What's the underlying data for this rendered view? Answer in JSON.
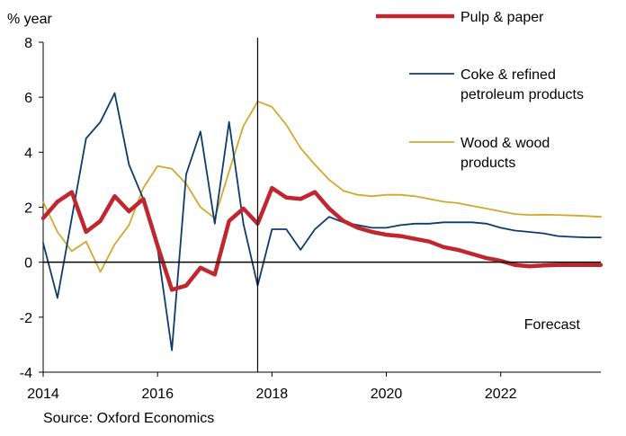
{
  "chart_data": {
    "type": "line",
    "title": "",
    "ylabel": "% year",
    "xlabel": "",
    "ylim": [
      -4,
      8
    ],
    "yticks": [
      -4,
      -2,
      0,
      2,
      4,
      6,
      8
    ],
    "xlim": [
      2014,
      2023.75
    ],
    "xticks": [
      2014,
      2016,
      2018,
      2020,
      2022
    ],
    "x": [
      2014,
      2014.25,
      2014.5,
      2014.75,
      2015,
      2015.25,
      2015.5,
      2015.75,
      2016,
      2016.25,
      2016.5,
      2016.75,
      2017,
      2017.25,
      2017.5,
      2017.75,
      2018,
      2018.25,
      2018.5,
      2018.75,
      2019,
      2019.25,
      2019.5,
      2019.75,
      2020,
      2020.25,
      2020.5,
      2020.75,
      2021,
      2021.25,
      2021.5,
      2021.75,
      2022,
      2022.25,
      2022.5,
      2022.75,
      2023,
      2023.25,
      2023.5,
      2023.75
    ],
    "series": [
      {
        "name": "Pulp & paper",
        "color": "#c0262d",
        "width": 4.5,
        "values": [
          1.6,
          2.2,
          2.55,
          1.1,
          1.5,
          2.4,
          1.85,
          2.3,
          0.6,
          -1.0,
          -0.85,
          -0.2,
          -0.45,
          1.5,
          1.95,
          1.4,
          2.7,
          2.35,
          2.3,
          2.55,
          1.95,
          1.5,
          1.25,
          1.1,
          1.0,
          0.95,
          0.85,
          0.75,
          0.55,
          0.45,
          0.3,
          0.15,
          0.05,
          -0.1,
          -0.15,
          -0.12,
          -0.1,
          -0.1,
          -0.1,
          -0.1
        ]
      },
      {
        "name": "Coke & refined petroleum products",
        "color": "#0d3b6e",
        "width": 1.8,
        "values": [
          0.7,
          -1.3,
          1.6,
          4.5,
          5.1,
          6.15,
          3.55,
          2.3,
          0.5,
          -3.2,
          3.2,
          4.75,
          1.4,
          5.1,
          1.4,
          -0.85,
          1.2,
          1.2,
          0.45,
          1.2,
          1.65,
          1.45,
          1.35,
          1.25,
          1.25,
          1.35,
          1.4,
          1.4,
          1.45,
          1.45,
          1.45,
          1.4,
          1.25,
          1.15,
          1.1,
          1.05,
          0.95,
          0.92,
          0.9,
          0.9
        ]
      },
      {
        "name": "Wood & wood products",
        "color": "#d4a82a",
        "width": 1.8,
        "values": [
          2.2,
          1.1,
          0.4,
          0.75,
          -0.35,
          0.65,
          1.35,
          2.7,
          3.5,
          3.4,
          2.85,
          2.0,
          1.6,
          3.3,
          4.95,
          5.85,
          5.65,
          5.0,
          4.15,
          3.55,
          3.0,
          2.6,
          2.45,
          2.4,
          2.45,
          2.45,
          2.4,
          2.3,
          2.2,
          2.15,
          2.05,
          1.95,
          1.85,
          1.75,
          1.72,
          1.73,
          1.72,
          1.7,
          1.68,
          1.65
        ]
      }
    ],
    "forecast_start": 2017.75,
    "annotation": "Forecast",
    "legend": {
      "placement": "top-right",
      "entries": [
        {
          "lines": [
            "Pulp & paper"
          ]
        },
        {
          "lines": [
            "Coke & refined",
            "petroleum products"
          ]
        },
        {
          "lines": [
            "Wood & wood",
            "products"
          ]
        }
      ]
    },
    "grid": false
  },
  "source": "Source: Oxford Economics"
}
